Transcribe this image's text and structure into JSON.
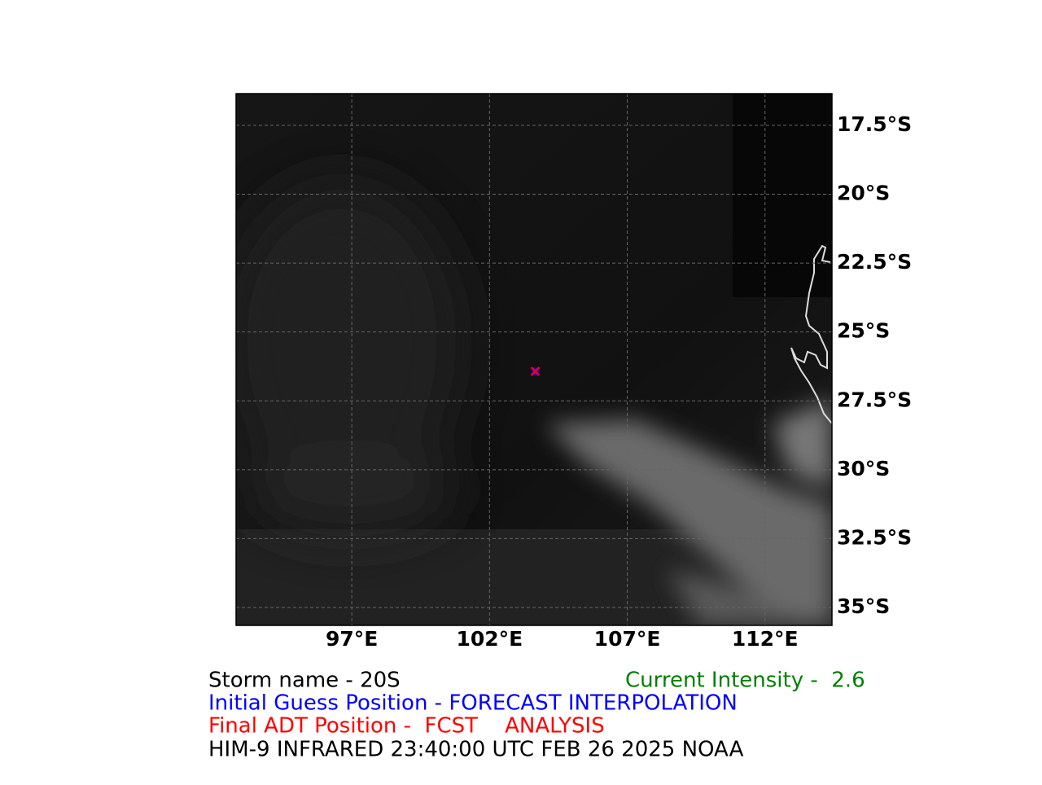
{
  "map": {
    "lon_range": [
      92.8,
      114.43
    ],
    "lat_range": [
      -16.35,
      -35.65
    ],
    "lon_ticks": [
      {
        "value": 97,
        "label": "97°E"
      },
      {
        "value": 102,
        "label": "102°E"
      },
      {
        "value": 107,
        "label": "107°E"
      },
      {
        "value": 112,
        "label": "112°E"
      }
    ],
    "lat_ticks": [
      {
        "value": -17.5,
        "label": "17.5°S"
      },
      {
        "value": -20,
        "label": "20°S"
      },
      {
        "value": -22.5,
        "label": "22.5°S"
      },
      {
        "value": -25,
        "label": "25°S"
      },
      {
        "value": -27.5,
        "label": "27.5°S"
      },
      {
        "value": -30,
        "label": "30°S"
      },
      {
        "value": -32.5,
        "label": "32.5°S"
      },
      {
        "value": -35,
        "label": "35°S"
      }
    ],
    "storm_position": {
      "lon": 103.66,
      "lat": -26.43
    }
  },
  "captions": {
    "storm_name": "Storm name - 20S",
    "current_intensity": "Current Intensity -  2.6",
    "initial_guess": "Initial Guess Position - FORECAST INTERPOLATION",
    "final_position": "Final ADT Position -  FCST    ANALYSIS",
    "source": "HIM-9 INFRARED 23:40:00 UTC FEB 26 2025 NOAA"
  }
}
